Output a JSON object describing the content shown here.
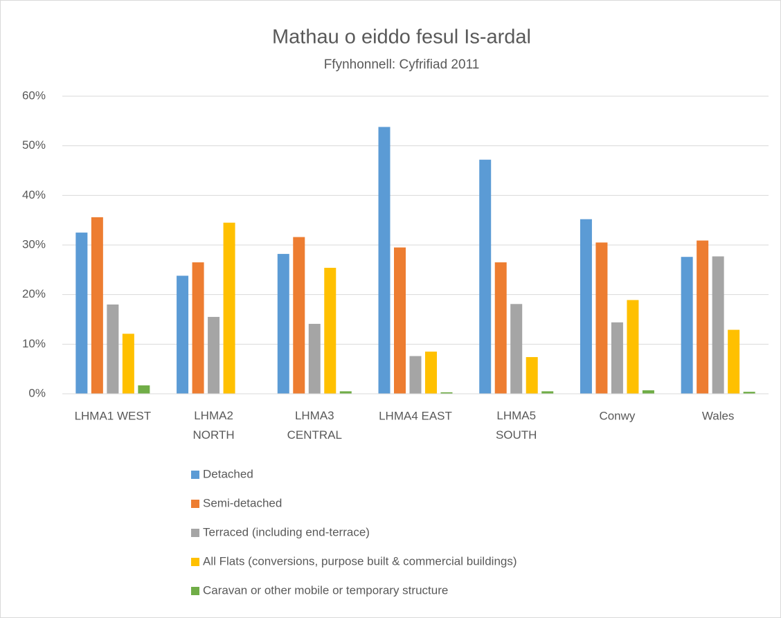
{
  "chart_data": {
    "type": "bar",
    "title": "Mathau o eiddo fesul Is-ardal",
    "subtitle": "Ffynhonnell: Cyfrifiad 2011",
    "categories": [
      "LHMA1 WEST",
      "LHMA2 NORTH",
      "LHMA3 CENTRAL",
      "LHMA4 EAST",
      "LHMA5 SOUTH",
      "Conwy",
      "Wales"
    ],
    "series": [
      {
        "name": "Detached",
        "color": "#5b9bd5",
        "values": [
          32.5,
          23.8,
          28.2,
          53.8,
          47.2,
          35.2,
          27.6
        ]
      },
      {
        "name": "Semi-detached",
        "color": "#ed7d31",
        "values": [
          35.6,
          26.5,
          31.6,
          29.5,
          26.5,
          30.5,
          30.9
        ]
      },
      {
        "name": "Terraced (including end-terrace)",
        "color": "#a5a5a5",
        "values": [
          18.0,
          15.5,
          14.1,
          7.6,
          18.1,
          14.4,
          27.7
        ]
      },
      {
        "name": "All Flats (conversions, purpose built & commercial buildings)",
        "color": "#ffc000",
        "values": [
          12.1,
          34.5,
          25.4,
          8.5,
          7.4,
          18.9,
          12.9
        ]
      },
      {
        "name": "Caravan or other mobile or temporary structure",
        "color": "#70ad47",
        "values": [
          1.7,
          0,
          0.5,
          0.3,
          0.5,
          0.7,
          0.4
        ]
      }
    ],
    "ylim": [
      0,
      60
    ],
    "yticks": [
      {
        "value": 0,
        "label": "0%"
      },
      {
        "value": 10,
        "label": "10%"
      },
      {
        "value": 20,
        "label": "20%"
      },
      {
        "value": 30,
        "label": "30%"
      },
      {
        "value": 40,
        "label": "40%"
      },
      {
        "value": 50,
        "label": "50%"
      },
      {
        "value": 60,
        "label": "60%"
      }
    ],
    "grid": true,
    "legend": "bottom"
  }
}
